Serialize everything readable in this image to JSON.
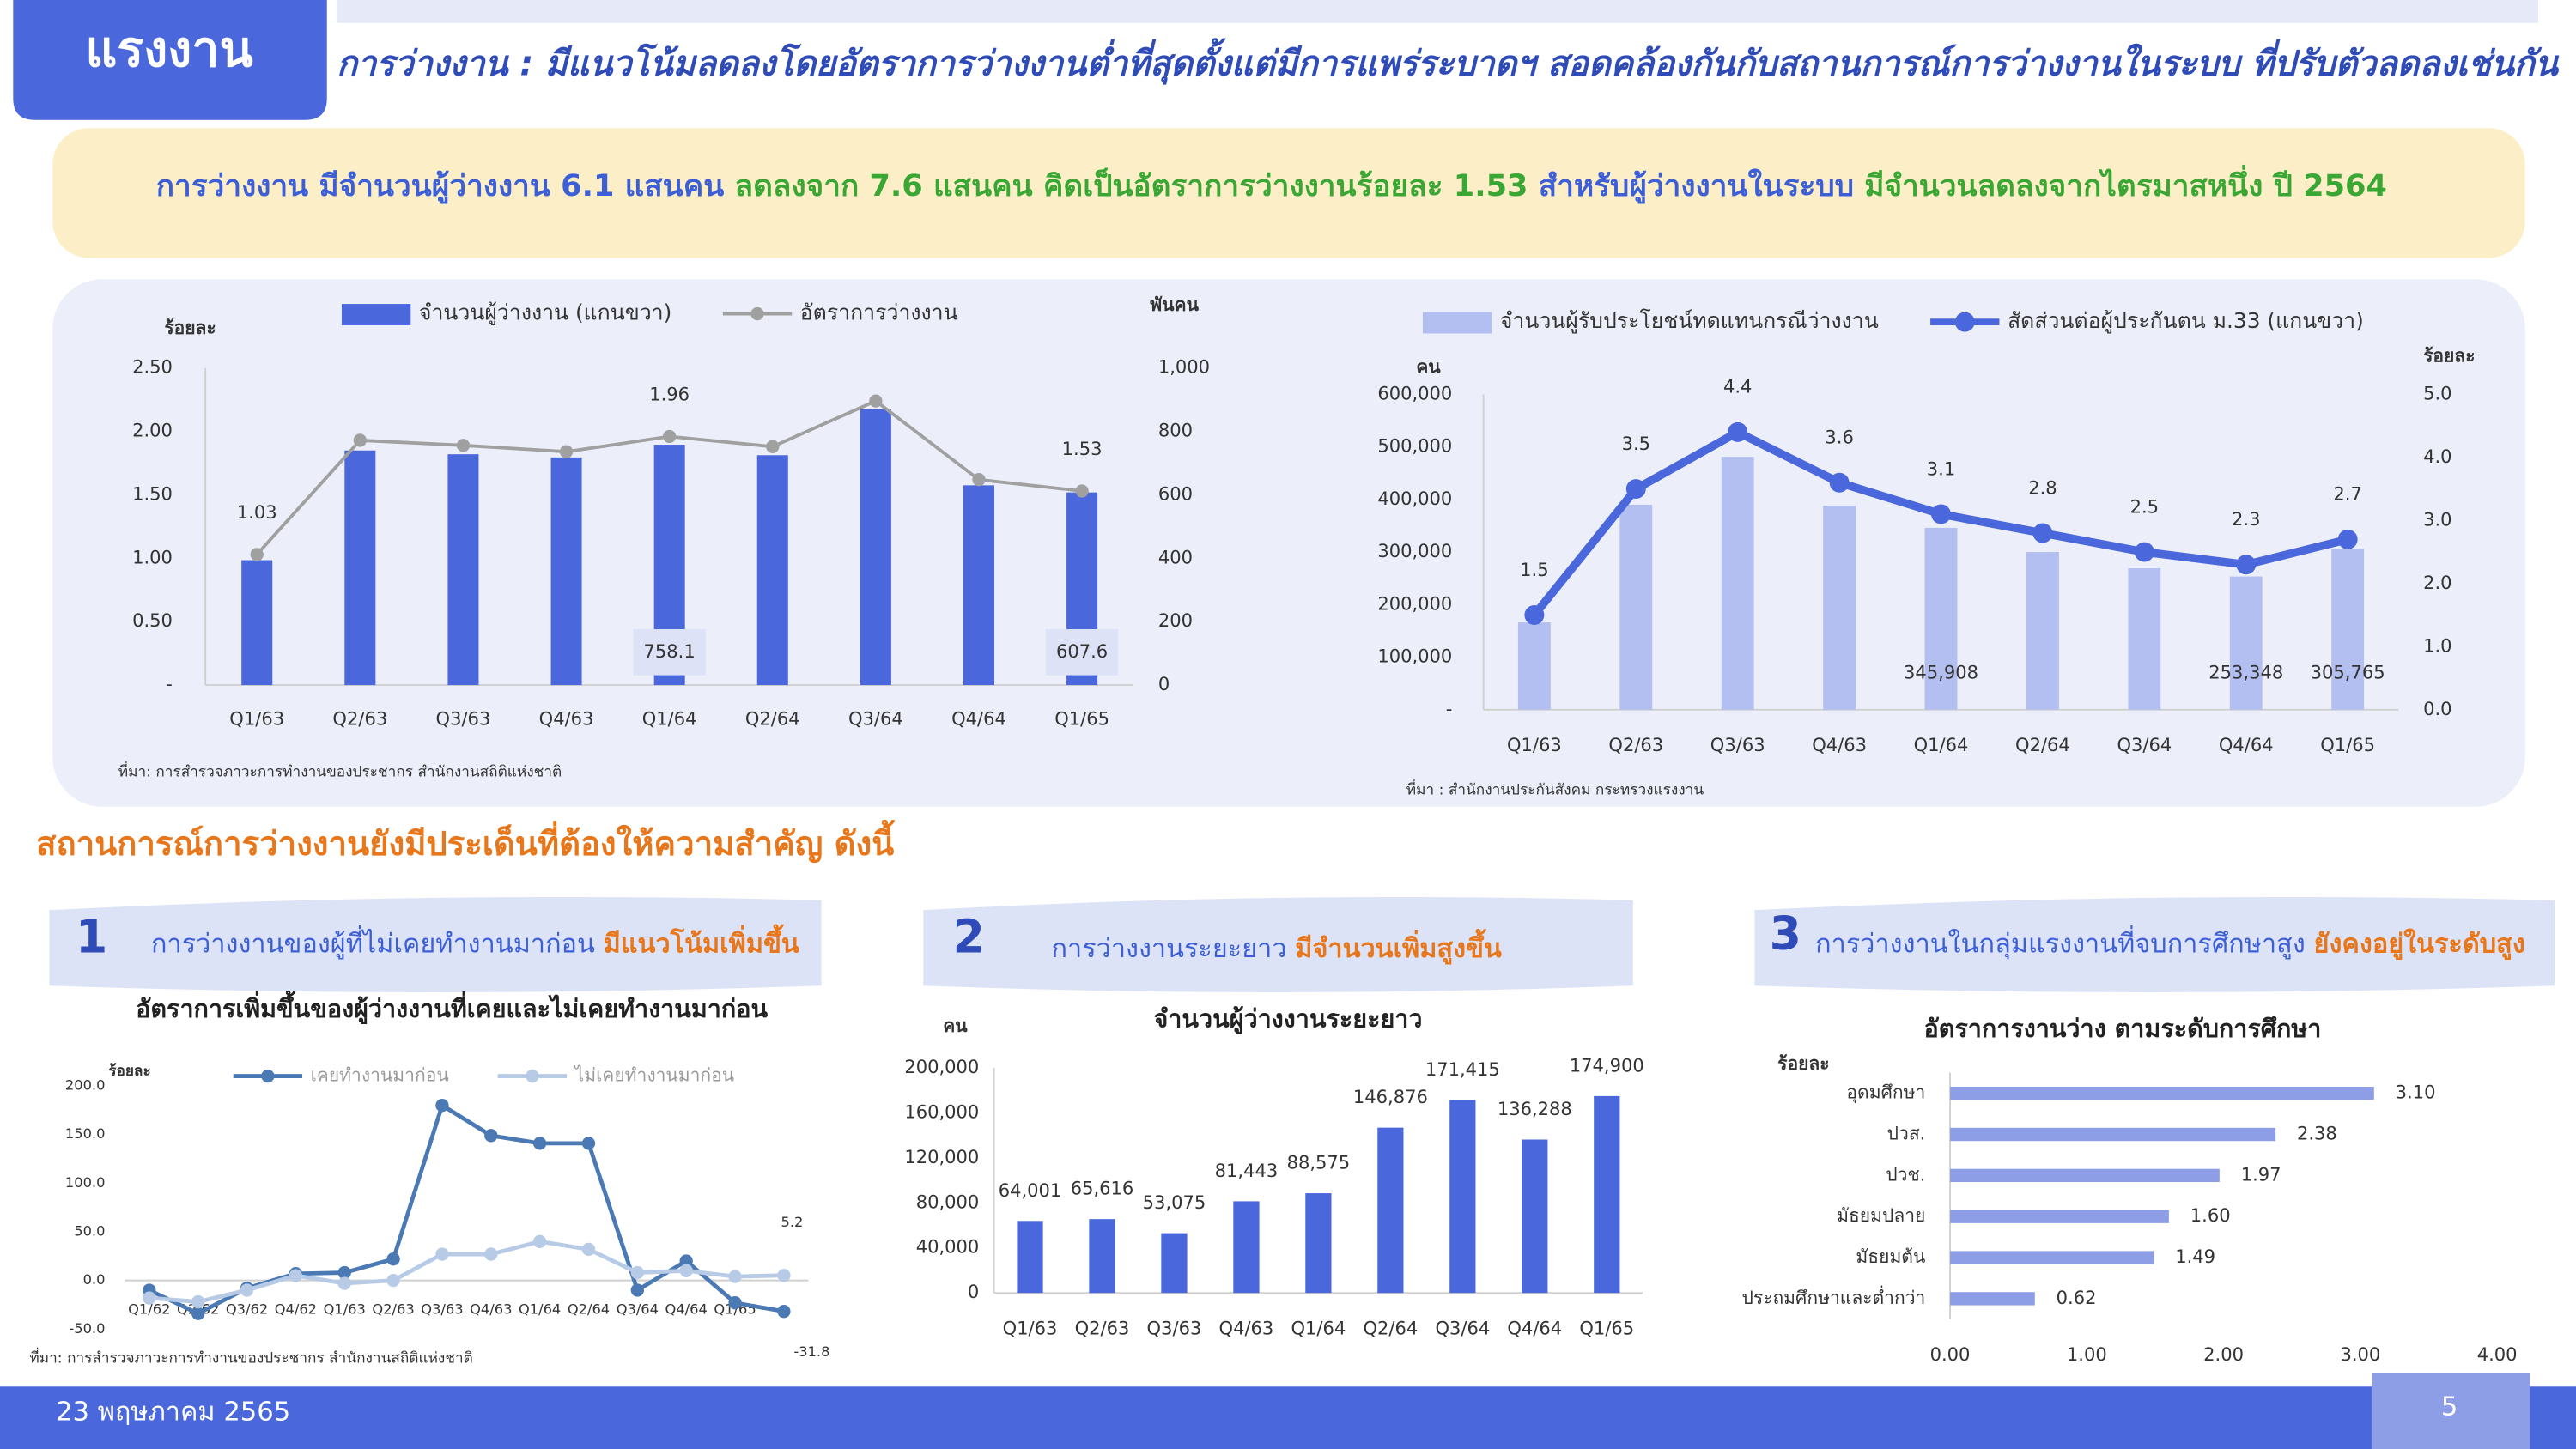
{
  "header": {
    "tag": "แรงงาน",
    "title": "การว่างงาน : มีแนวโน้มลดลงโดยอัตราการว่างงานต่ำที่สุดตั้งแต่มีการแพร่ระบาดฯ สอดคล้องกันกับสถานการณ์การว่างงานในระบบ ที่ปรับตัวลดลงเช่นกัน"
  },
  "summary": [
    "การว่างงาน มีจำนวนผู้ว่างงาน 6.1 แสนคน ",
    "ลดลงจาก 7.6 แสนคน ",
    "คิดเป็นอัตราการว่างงานร้อยละ 1.53 ",
    "สำหรับผู้ว่างงานในระบบ ",
    "มีจำนวนลดลงจากไตรมาสหนึ่ง ปี 2564"
  ],
  "section_heading": "สถานการณ์การว่างงานยังมีประเด็นที่ต้องให้ความสำคัญ ดังนี้",
  "issues": [
    {
      "number": "1",
      "text": "การว่างงานของผู้ที่ไม่เคยทำงานมาก่อน ",
      "highlight": "มีแนวโน้มเพิ่มขึ้น"
    },
    {
      "number": "2",
      "text": "การว่างงานระยะยาว ",
      "highlight": "มีจำนวนเพิ่มสูงขึ้น"
    },
    {
      "number": "3",
      "text": "การว่างงานในกลุ่มแรงงานที่จบการศึกษาสูง ",
      "highlight": "ยังคงอยู่ในระดับสูง"
    }
  ],
  "footer": {
    "date": "23 พฤษภาคม  2565",
    "page": "5"
  },
  "chart_data": [
    {
      "type": "combo",
      "ylabel": "ร้อยละ",
      "y2label": "พันคน",
      "categories": [
        "Q1/63",
        "Q2/63",
        "Q3/63",
        "Q4/63",
        "Q1/64",
        "Q2/64",
        "Q3/64",
        "Q4/64",
        "Q1/65"
      ],
      "series": [
        {
          "name": "จำนวนผู้ว่างงาน (แกนขวา)",
          "type": "bar",
          "axis": "y2",
          "color": "#4a67dc",
          "values": [
            394,
            740,
            728,
            718,
            758.1,
            725,
            870,
            630,
            607.6
          ],
          "value_labels": [
            null,
            null,
            null,
            null,
            "758.1",
            null,
            null,
            null,
            "607.6"
          ]
        },
        {
          "name": "อัตราการว่างงาน",
          "type": "line",
          "color": "#a0a0a0",
          "values": [
            1.03,
            1.93,
            1.89,
            1.84,
            1.96,
            1.88,
            2.24,
            1.62,
            1.53
          ],
          "value_labels": [
            "1.03",
            null,
            null,
            null,
            "1.96",
            null,
            null,
            null,
            "1.53"
          ]
        }
      ],
      "ylim": [
        0,
        2.5
      ],
      "yticks": [
        {
          "value": 0,
          "label": "-"
        },
        {
          "value": 0.5,
          "label": "0.50"
        },
        {
          "value": 1,
          "label": "1.00"
        },
        {
          "value": 1.5,
          "label": "1.50"
        },
        {
          "value": 2,
          "label": "2.00"
        },
        {
          "value": 2.5,
          "label": "2.50"
        }
      ],
      "y2lim": [
        0,
        1000
      ],
      "y2ticks": [
        0,
        200,
        400,
        600,
        800,
        {
          "value": 1000,
          "label": "1,000"
        }
      ],
      "source": "ที่มา:  การสำรวจภาวะการทำงานของประชากร สำนักงานสถิติแห่งชาติ"
    },
    {
      "type": "combo",
      "ylabel": "คน",
      "y2label": "ร้อยละ",
      "categories": [
        "Q1/63",
        "Q2/63",
        "Q3/63",
        "Q4/63",
        "Q1/64",
        "Q2/64",
        "Q3/64",
        "Q4/64",
        "Q1/65"
      ],
      "series": [
        {
          "name": "จำนวนผู้รับประโยชน์ทดแทนกรณีว่างงาน",
          "type": "bar",
          "color": "#b3bff0",
          "values": [
            166000,
            390000,
            481000,
            388000,
            345908,
            300000,
            269000,
            253348,
            305765
          ],
          "value_labels": [
            null,
            null,
            null,
            null,
            "345,908",
            null,
            null,
            "253,348",
            "305,765"
          ]
        },
        {
          "name": "สัดส่วนต่อผู้ประกันตน ม.33 (แกนขวา)",
          "type": "line",
          "axis": "y2",
          "color": "#4a67dc",
          "values": [
            1.5,
            3.5,
            4.4,
            3.6,
            3.1,
            2.8,
            2.5,
            2.3,
            2.7
          ]
        }
      ],
      "ylim": [
        0,
        600000
      ],
      "yticks": [
        {
          "value": 0,
          "label": "-"
        },
        {
          "value": 100000,
          "label": "100,000"
        },
        {
          "value": 200000,
          "label": "200,000"
        },
        {
          "value": 300000,
          "label": "300,000"
        },
        {
          "value": 400000,
          "label": "400,000"
        },
        {
          "value": 500000,
          "label": "500,000"
        },
        {
          "value": 600000,
          "label": "600,000"
        }
      ],
      "y2lim": [
        0,
        5
      ],
      "y2ticks": [
        {
          "value": 0,
          "label": "0.0"
        },
        {
          "value": 1,
          "label": "1.0"
        },
        {
          "value": 2,
          "label": "2.0"
        },
        {
          "value": 3,
          "label": "3.0"
        },
        {
          "value": 4,
          "label": "4.0"
        },
        {
          "value": 5,
          "label": "5.0"
        }
      ],
      "source": "ที่มา : สำนักงานประกันสังคม กระทรวงแรงงาน"
    },
    {
      "type": "line",
      "title": "อัตราการเพิ่มขึ้นของผู้ว่างงานที่เคยและไม่เคยทำงานมาก่อน",
      "ylabel": "ร้อยละ",
      "categories": [
        "Q1/62",
        "Q2/62",
        "Q3/62",
        "Q4/62",
        "Q1/63",
        "Q2/63",
        "Q3/63",
        "Q4/63",
        "Q1/64",
        "Q2/64",
        "Q3/64",
        "Q4/64",
        "Q1/65",
        null
      ],
      "series": [
        {
          "name": "เคยทำงานมาก่อน",
          "color": "#4a79b4",
          "values": [
            -10,
            -34,
            -8,
            7,
            8,
            22,
            180,
            149,
            141,
            141,
            -10,
            20,
            -23,
            -31.8
          ],
          "value_labels": [
            null,
            null,
            null,
            null,
            null,
            null,
            null,
            null,
            null,
            null,
            null,
            null,
            null,
            "-31.8"
          ]
        },
        {
          "name": "ไม่เคยทำงานมาก่อน",
          "color": "#b7cbe6",
          "values": [
            -18,
            -22,
            -10,
            5,
            -3,
            0,
            27,
            27,
            40,
            32,
            8,
            10,
            4,
            5.2
          ],
          "value_labels": [
            null,
            null,
            null,
            null,
            null,
            null,
            null,
            null,
            null,
            null,
            null,
            null,
            null,
            "5.2"
          ]
        }
      ],
      "ylim": [
        -50,
        200
      ],
      "yticks": [
        {
          "value": -50,
          "label": "-50.0"
        },
        {
          "value": 0,
          "label": "0.0"
        },
        {
          "value": 50,
          "label": "50.0"
        },
        {
          "value": 100,
          "label": "100.0"
        },
        {
          "value": 150,
          "label": "150.0"
        },
        {
          "value": 200,
          "label": "200.0"
        }
      ],
      "source": "ที่มา:  การสำรวจภาวะการทำงานของประชากร สำนักงานสถิติแห่งชาติ"
    },
    {
      "type": "bar",
      "title": "จำนวนผู้ว่างงานระยะยาว",
      "ylabel": "คน",
      "color": "#4a67dc",
      "categories": [
        "Q1/63",
        "Q2/63",
        "Q3/63",
        "Q4/63",
        "Q1/64",
        "Q2/64",
        "Q3/64",
        "Q4/64",
        "Q1/65"
      ],
      "values": [
        64001,
        65616,
        53075,
        81443,
        88575,
        146876,
        171415,
        136288,
        174900
      ],
      "value_labels": [
        "64,001",
        "65,616",
        "53,075",
        "81,443",
        "88,575",
        "146,876",
        "171,415",
        "136,288",
        "174,900"
      ],
      "ylim": [
        0,
        200000
      ],
      "yticks": [
        0,
        {
          "value": 40000,
          "label": "40,000"
        },
        {
          "value": 80000,
          "label": "80,000"
        },
        {
          "value": 120000,
          "label": "120,000"
        },
        {
          "value": 160000,
          "label": "160,000"
        },
        {
          "value": 200000,
          "label": "200,000"
        }
      ]
    },
    {
      "type": "hbar",
      "title": "อัตราการงานว่าง ตามระดับการศึกษา",
      "xlabel": "ร้อยละ",
      "color": "#8d9ee6",
      "categories": [
        "อุดมศึกษา",
        "ปวส.",
        "ปวช.",
        "มัธยมปลาย",
        "มัธยมต้น",
        "ประถมศึกษาและต่ำกว่า"
      ],
      "values": [
        3.1,
        2.38,
        1.97,
        1.6,
        1.49,
        0.62
      ],
      "value_labels": [
        "3.10",
        "2.38",
        "1.97",
        "1.60",
        "1.49",
        "0.62"
      ],
      "xlim": [
        0,
        4
      ],
      "xticks": [
        {
          "value": 0,
          "label": "0.00"
        },
        {
          "value": 1,
          "label": "1.00"
        },
        {
          "value": 2,
          "label": "2.00"
        },
        {
          "value": 3,
          "label": "3.00"
        },
        {
          "value": 4,
          "label": "4.00"
        }
      ]
    }
  ]
}
